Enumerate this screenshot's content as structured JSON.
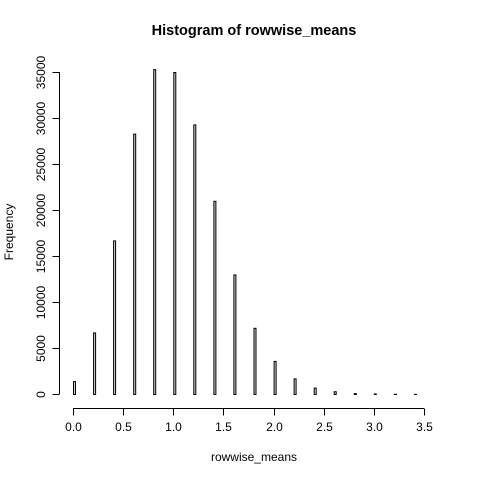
{
  "chart_data": {
    "type": "bar",
    "title": "Histogram of rowwise_means",
    "xlabel": "rowwise_means",
    "ylabel": "Frequency",
    "xlim": [
      0,
      3.6
    ],
    "ylim": [
      0,
      35000
    ],
    "bin_width": 0.02,
    "x": [
      0.0,
      0.2,
      0.4,
      0.6,
      0.8,
      1.0,
      1.2,
      1.4,
      1.6,
      1.8,
      2.0,
      2.2,
      2.4,
      2.6,
      2.8,
      3.0,
      3.2,
      3.4,
      3.6
    ],
    "values": [
      1400,
      6700,
      16700,
      28300,
      35300,
      35000,
      29300,
      21000,
      13000,
      7200,
      3600,
      1700,
      700,
      300,
      100,
      50,
      20,
      10,
      5
    ],
    "x_ticks": [
      "0.0",
      "0.5",
      "1.0",
      "1.5",
      "2.0",
      "2.5",
      "3.0",
      "3.5"
    ],
    "x_tick_values": [
      0,
      0.5,
      1.0,
      1.5,
      2.0,
      2.5,
      3.0,
      3.5
    ],
    "y_ticks": [
      "0",
      "5000",
      "10000",
      "15000",
      "20000",
      "25000",
      "30000",
      "35000"
    ],
    "y_tick_values": [
      0,
      5000,
      10000,
      15000,
      20000,
      25000,
      30000,
      35000
    ],
    "grid": false,
    "bar_color": "#d3d3d3",
    "border_color": "#000000"
  }
}
